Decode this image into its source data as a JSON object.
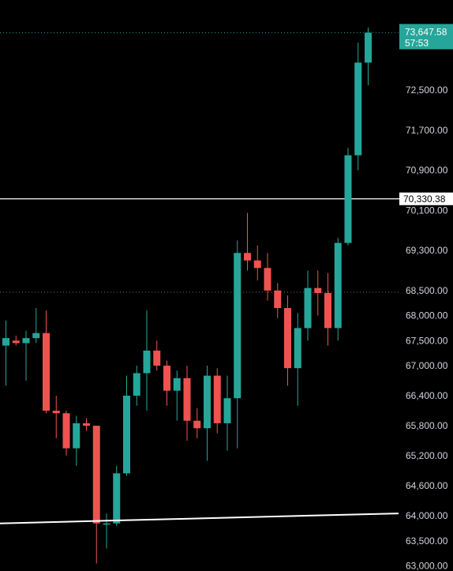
{
  "chart_data": {
    "type": "candlestick",
    "ylim": [
      62900,
      74300
    ],
    "y_ticks": [
      "72,500.00",
      "71,700.00",
      "70,900.00",
      "70,100.00",
      "69,300.00",
      "68,500.00",
      "68,000.00",
      "67,500.00",
      "67,000.00",
      "66,400.00",
      "65,800.00",
      "65,200.00",
      "64,600.00",
      "64,000.00",
      "63,500.00",
      "63,000.00"
    ],
    "y_tick_values": [
      72500,
      71700,
      70900,
      70100,
      69300,
      68500,
      68000,
      67500,
      67000,
      66400,
      65800,
      65200,
      64600,
      64000,
      63500,
      63000
    ],
    "colors": {
      "up": "#26a69a",
      "down": "#ef5350",
      "background": "#000000",
      "axis_text": "#d1d4dc"
    },
    "candles": [
      {
        "o": 67400,
        "h": 67900,
        "l": 66600,
        "c": 67550
      },
      {
        "o": 67500,
        "h": 67600,
        "l": 67400,
        "c": 67450
      },
      {
        "o": 67450,
        "h": 67700,
        "l": 66700,
        "c": 67550
      },
      {
        "o": 67550,
        "h": 68150,
        "l": 67450,
        "c": 67650
      },
      {
        "o": 67650,
        "h": 68100,
        "l": 66050,
        "c": 66100
      },
      {
        "o": 66100,
        "h": 66400,
        "l": 65550,
        "c": 66050
      },
      {
        "o": 66050,
        "h": 66100,
        "l": 65200,
        "c": 65350
      },
      {
        "o": 65350,
        "h": 66000,
        "l": 65000,
        "c": 65850
      },
      {
        "o": 65850,
        "h": 65950,
        "l": 65700,
        "c": 65800
      },
      {
        "o": 65800,
        "h": 65800,
        "l": 63050,
        "c": 63850
      },
      {
        "o": 63850,
        "h": 64050,
        "l": 63350,
        "c": 63850
      },
      {
        "o": 63850,
        "h": 65000,
        "l": 63800,
        "c": 64850
      },
      {
        "o": 64850,
        "h": 66800,
        "l": 64800,
        "c": 66400
      },
      {
        "o": 66400,
        "h": 67000,
        "l": 66200,
        "c": 66850
      },
      {
        "o": 66850,
        "h": 68100,
        "l": 66100,
        "c": 67300
      },
      {
        "o": 67300,
        "h": 67500,
        "l": 66900,
        "c": 67000
      },
      {
        "o": 67000,
        "h": 67100,
        "l": 66200,
        "c": 66500
      },
      {
        "o": 66500,
        "h": 66900,
        "l": 65900,
        "c": 66750
      },
      {
        "o": 66750,
        "h": 67000,
        "l": 65500,
        "c": 65900
      },
      {
        "o": 65900,
        "h": 66150,
        "l": 65550,
        "c": 65750
      },
      {
        "o": 65750,
        "h": 67000,
        "l": 65100,
        "c": 66800
      },
      {
        "o": 66800,
        "h": 66950,
        "l": 65650,
        "c": 65850
      },
      {
        "o": 65850,
        "h": 66800,
        "l": 65300,
        "c": 66350
      },
      {
        "o": 66350,
        "h": 69500,
        "l": 65350,
        "c": 69250
      },
      {
        "o": 69250,
        "h": 70050,
        "l": 68900,
        "c": 69100
      },
      {
        "o": 69100,
        "h": 69400,
        "l": 68700,
        "c": 68950
      },
      {
        "o": 68950,
        "h": 69250,
        "l": 68300,
        "c": 68500
      },
      {
        "o": 68500,
        "h": 68650,
        "l": 67950,
        "c": 68150
      },
      {
        "o": 68150,
        "h": 68400,
        "l": 66600,
        "c": 66950
      },
      {
        "o": 66950,
        "h": 68050,
        "l": 66200,
        "c": 67750
      },
      {
        "o": 67750,
        "h": 68900,
        "l": 67500,
        "c": 68550
      },
      {
        "o": 68550,
        "h": 68900,
        "l": 68000,
        "c": 68450
      },
      {
        "o": 68450,
        "h": 68850,
        "l": 67400,
        "c": 67750
      },
      {
        "o": 67750,
        "h": 69550,
        "l": 67500,
        "c": 69450
      },
      {
        "o": 69450,
        "h": 71350,
        "l": 69400,
        "c": 71200
      },
      {
        "o": 71200,
        "h": 73450,
        "l": 70900,
        "c": 73050
      },
      {
        "o": 73050,
        "h": 73750,
        "l": 72600,
        "c": 73647.58
      }
    ],
    "horizontal_lines": [
      {
        "value": 70330.38,
        "label": "70,330.38"
      },
      {
        "value": 68465
      }
    ],
    "price_line": {
      "value": 73647.58
    },
    "trendline": {
      "from": 63850,
      "to": 64050
    },
    "last_price": {
      "price": "73,647.58",
      "countdown": "57:53"
    }
  }
}
